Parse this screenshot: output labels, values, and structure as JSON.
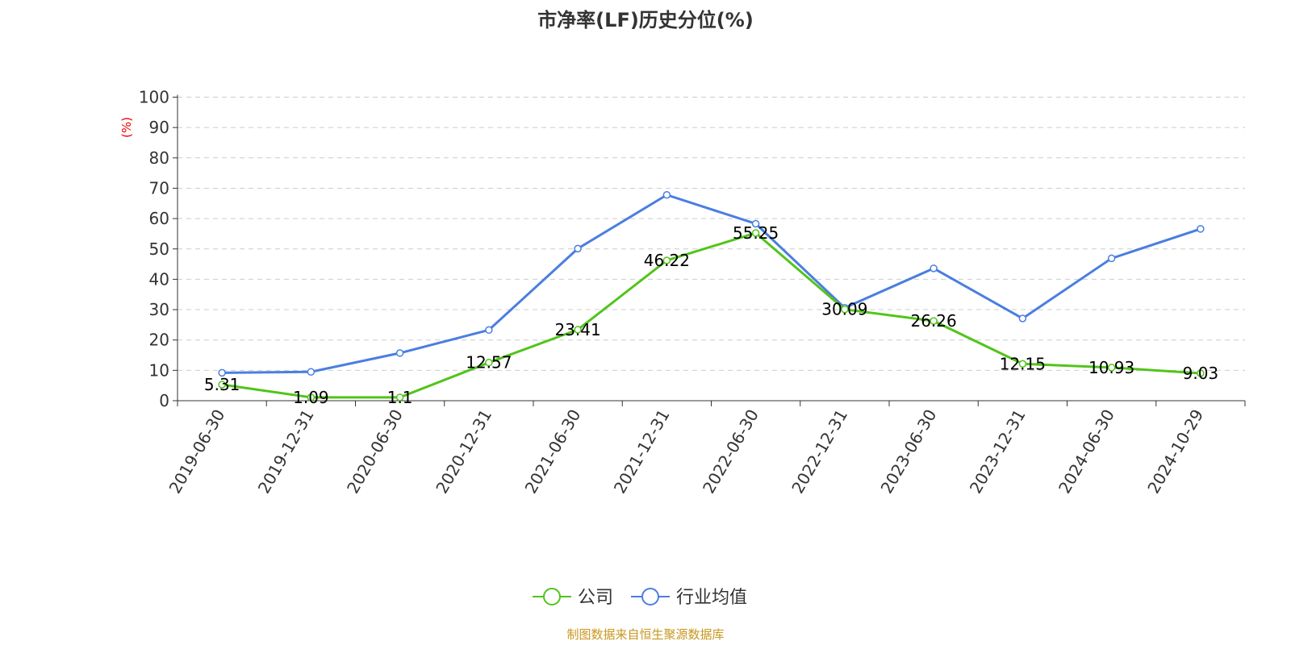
{
  "chart_data": {
    "type": "line",
    "title": "市净率(LF)历史分位(%)",
    "ylabel": "(%)",
    "ylim": [
      0,
      100
    ],
    "yticks": [
      0,
      10,
      20,
      30,
      40,
      50,
      60,
      70,
      80,
      90,
      100
    ],
    "grid": true,
    "legend_placement": "bottom",
    "categories": [
      "2019-06-30",
      "2019-12-31",
      "2020-06-30",
      "2020-12-31",
      "2021-06-30",
      "2021-12-31",
      "2022-06-30",
      "2022-12-31",
      "2023-06-30",
      "2023-12-31",
      "2024-06-30",
      "2024-10-29"
    ],
    "series": [
      {
        "name": "公司",
        "color": "#52c41a",
        "show_labels": true,
        "values": [
          5.31,
          1.09,
          1.1,
          12.57,
          23.41,
          46.22,
          55.25,
          30.09,
          26.26,
          12.15,
          10.93,
          9.03
        ]
      },
      {
        "name": "行业均值",
        "color": "#4a7ee0",
        "show_labels": false,
        "values": [
          9.2,
          9.5,
          15.7,
          23.3,
          50.1,
          67.8,
          58.3,
          30.6,
          43.6,
          27.1,
          46.9,
          56.6
        ]
      }
    ],
    "source": "制图数据来自恒生聚源数据库"
  }
}
